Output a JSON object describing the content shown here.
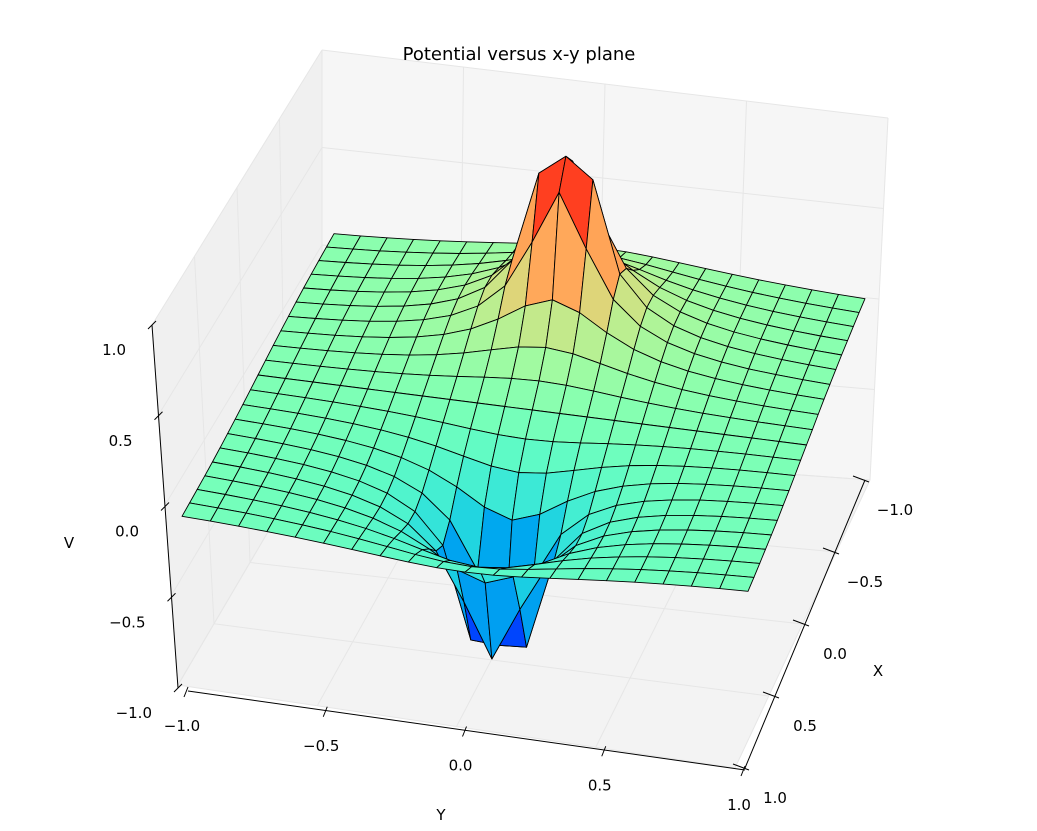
{
  "chart_data": {
    "type": "surface3d",
    "title": "Potential versus x-y plane",
    "xlabel": "X",
    "ylabel": "Y",
    "zlabel": "V",
    "xlim": [
      -1.0,
      1.0
    ],
    "ylim": [
      -1.0,
      1.0
    ],
    "zlim": [
      -1.0,
      1.0
    ],
    "x_ticks": [
      "−1.0",
      "−0.5",
      "0.0",
      "0.5",
      "1.0"
    ],
    "y_ticks": [
      "−1.0",
      "−0.5",
      "0.0",
      "0.5",
      "1.0"
    ],
    "z_ticks": [
      "−1.0",
      "−0.5",
      "0.0",
      "0.5",
      "1.0"
    ],
    "x_tick_values": [
      -1.0,
      -0.5,
      0.0,
      0.5,
      1.0
    ],
    "y_tick_values": [
      -1.0,
      -0.5,
      0.0,
      0.5,
      1.0
    ],
    "z_tick_values": [
      -1.0,
      -0.5,
      0.0,
      0.5,
      1.0
    ],
    "grid": true,
    "colormap": "rainbow",
    "surface_grid": 20,
    "surface": {
      "description_free": true,
      "positive_charge_xy": [
        0.0,
        -0.5
      ],
      "negative_charge_xy": [
        0.0,
        0.5
      ],
      "peak_value": 1.0,
      "trough_value": -0.9
    }
  },
  "colors": {
    "pane_left": "#f2f2f2",
    "pane_back": "#f7f7f7",
    "pane_floor": "#f4f4f4",
    "grid": "#e6e6e6"
  }
}
